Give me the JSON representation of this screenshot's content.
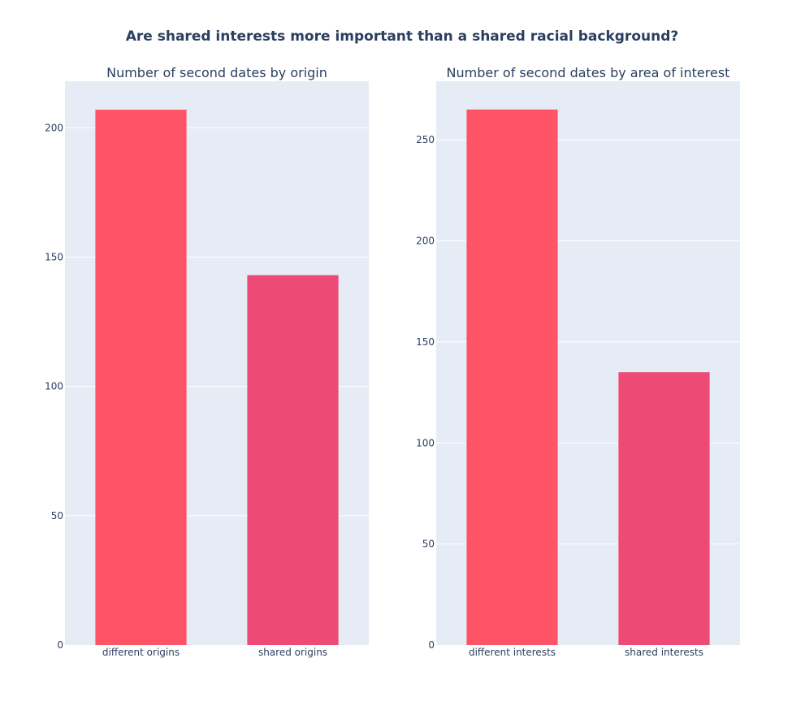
{
  "title": "Are shared interests more important than a shared racial background?",
  "colors": {
    "plot_bg": "#E5ECF6",
    "grid": "#FFFFFF",
    "text": "#2a3f5f",
    "bar_primary": "#FF5466",
    "bar_secondary": "#EE4A76"
  },
  "chart_data": [
    {
      "type": "bar",
      "title": "Number of second dates by origin",
      "categories": [
        "different origins",
        "shared origins"
      ],
      "values": [
        207,
        143
      ],
      "colors": [
        "#FF5466",
        "#EE4A76"
      ],
      "ylim": [
        0,
        218
      ],
      "yticks": [
        0,
        50,
        100,
        150,
        200
      ],
      "xlabel": "",
      "ylabel": "",
      "grid": true
    },
    {
      "type": "bar",
      "title": "Number of second dates by area of interest",
      "categories": [
        "different interests",
        "shared interests"
      ],
      "values": [
        265,
        135
      ],
      "colors": [
        "#FF5466",
        "#EE4A76"
      ],
      "ylim": [
        0,
        279
      ],
      "yticks": [
        0,
        50,
        100,
        150,
        200,
        250
      ],
      "xlabel": "",
      "ylabel": "",
      "grid": true
    }
  ]
}
